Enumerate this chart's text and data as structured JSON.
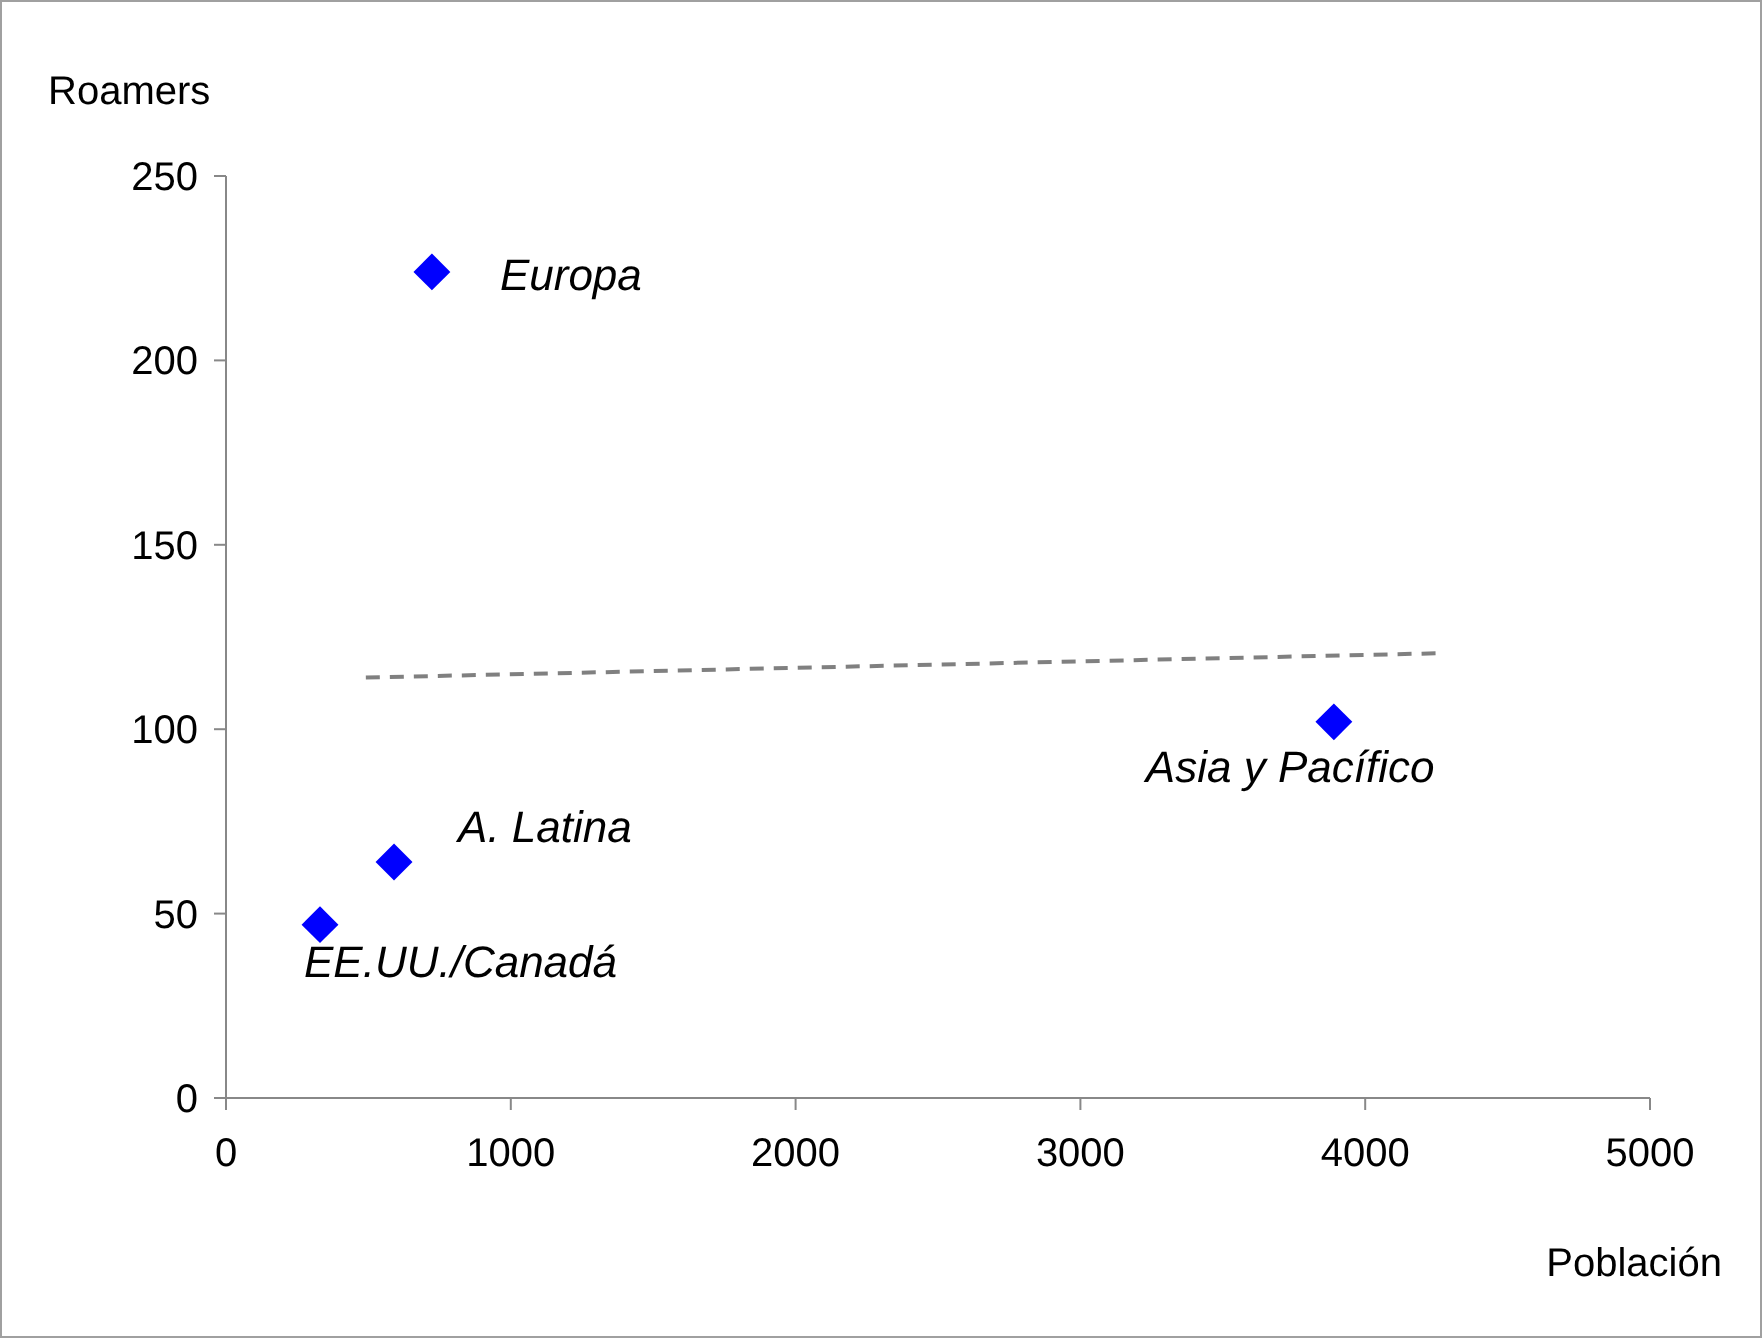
{
  "chart_data": {
    "type": "scatter",
    "xlabel": "Población",
    "ylabel": "Roamers",
    "xlim": [
      0,
      5000
    ],
    "ylim": [
      0,
      250
    ],
    "xticks": [
      0,
      1000,
      2000,
      3000,
      4000,
      5000
    ],
    "yticks": [
      0,
      50,
      100,
      150,
      200,
      250
    ],
    "grid": false,
    "marker": "diamond",
    "series": [
      {
        "color": "#0000ff",
        "x": [
          330,
          590,
          723,
          3890
        ],
        "values": [
          47,
          64,
          224,
          102
        ]
      },
      {
        "type": "line",
        "color": "#808080",
        "line_style": "dashed",
        "marker": "none",
        "x": [
          491,
          4261
        ],
        "values": [
          114,
          120.6
        ]
      }
    ],
    "annotations": [
      {
        "text": "EE.UU./Canadá",
        "x": 330,
        "y": 47
      },
      {
        "text": "A. Latina",
        "x": 590,
        "y": 64
      },
      {
        "text": "Europa",
        "x": 723,
        "y": 224
      },
      {
        "text": "Asia y Pacífico",
        "x": 3890,
        "y": 102
      }
    ]
  }
}
